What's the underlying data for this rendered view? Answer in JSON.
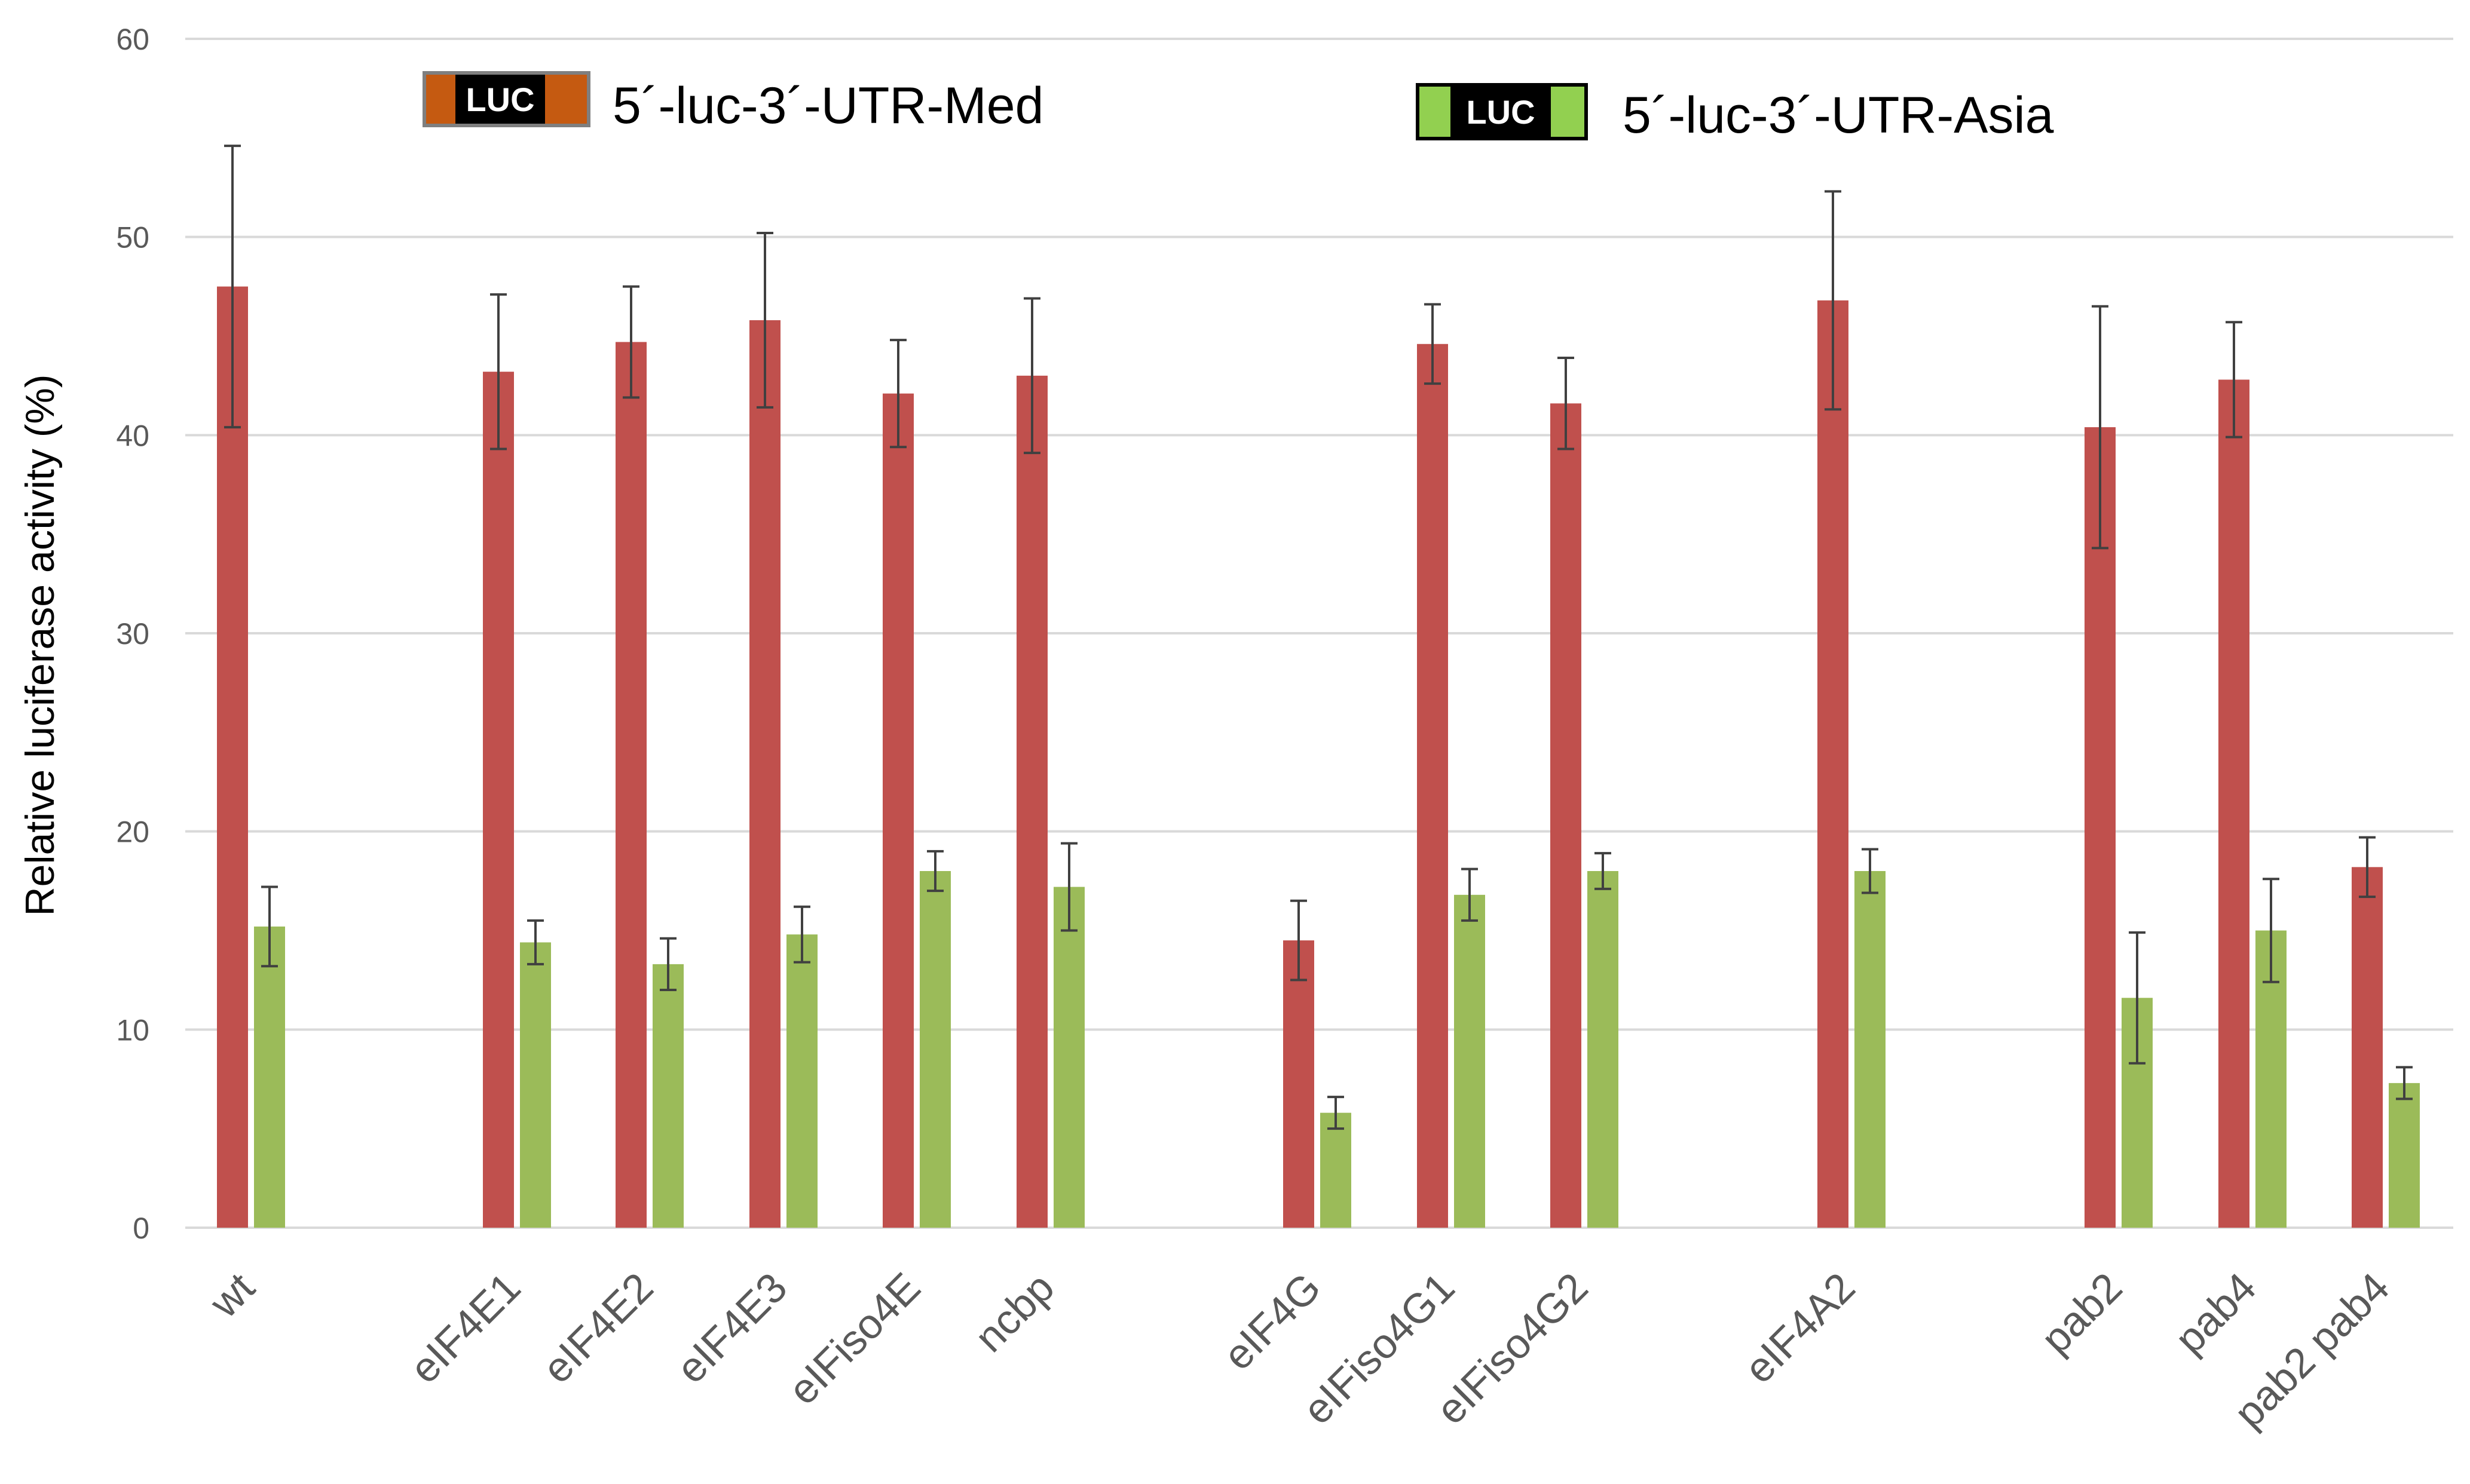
{
  "chart_data": {
    "type": "bar",
    "ylabel": "Relative luciferase activity (%)",
    "xlabel": "",
    "ylim": [
      0,
      60
    ],
    "yticks": [
      0,
      10,
      20,
      30,
      40,
      50,
      60
    ],
    "grid": true,
    "legend_placement": "top",
    "categories": [
      "wt",
      "eIF4E1",
      "eIF4E2",
      "eIF4E3",
      "eIFiso4E",
      "ncbp",
      "eIF4G",
      "eIFiso4G1",
      "eIFiso4G2",
      "eIF4A2",
      "pab2",
      "pab4",
      "pab2 pab4"
    ],
    "series": [
      {
        "name": "5´-luc-3´-UTR-Med",
        "badge": "LUC",
        "color": "#C0504D",
        "badge_color": "#C55A11",
        "values": [
          47.5,
          43.2,
          44.7,
          45.8,
          42.1,
          43.0,
          14.5,
          44.6,
          41.6,
          46.8,
          40.4,
          42.8,
          18.2
        ],
        "errors": [
          7.1,
          3.9,
          2.8,
          4.4,
          2.7,
          3.9,
          2.0,
          2.0,
          2.3,
          5.5,
          6.1,
          2.9,
          1.5
        ]
      },
      {
        "name": "5´-luc-3´-UTR-Asia",
        "badge": "LUC",
        "color": "#9BBB59",
        "badge_color": "#92D050",
        "values": [
          15.2,
          14.4,
          13.3,
          14.8,
          18.0,
          17.2,
          5.8,
          16.8,
          18.0,
          18.0,
          11.6,
          15.0,
          7.3
        ],
        "errors": [
          2.0,
          1.1,
          1.3,
          1.4,
          1.0,
          2.2,
          0.8,
          1.3,
          0.9,
          1.1,
          3.3,
          2.6,
          0.8
        ]
      }
    ]
  }
}
